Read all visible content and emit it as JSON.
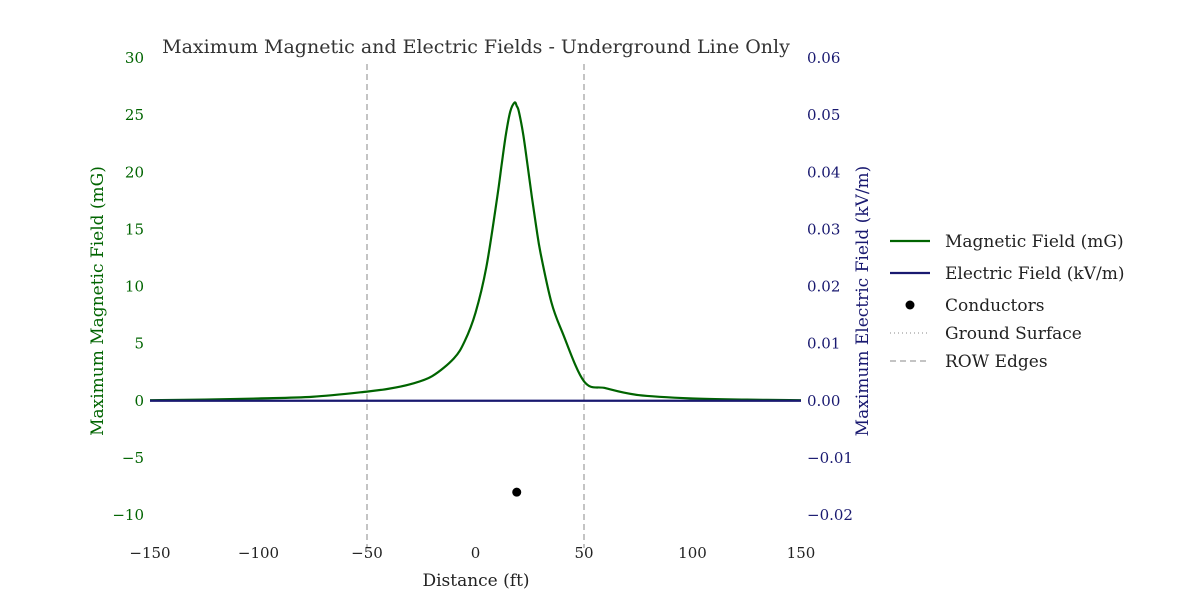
{
  "chart_data": {
    "type": "line",
    "title": "Maximum Magnetic and Electric Fields - Underground Line Only",
    "xlabel": "Distance (ft)",
    "ylabel_left": "Maximum Magnetic Field (mG)",
    "ylabel_right": "Maximum Electric Field (kV/m)",
    "xlim": [
      -150,
      150
    ],
    "ylim_left": [
      -10,
      30
    ],
    "ylim_right": [
      -0.02,
      0.06
    ],
    "x_ticks": [
      "−150",
      "−100",
      "−50",
      "0",
      "50",
      "100",
      "150"
    ],
    "y_left_ticks": [
      "30",
      "25",
      "20",
      "15",
      "10",
      "5",
      "0",
      "−5",
      "−10"
    ],
    "y_right_ticks": [
      "0.06",
      "0.05",
      "0.04",
      "0.03",
      "0.02",
      "0.01",
      "0.00",
      "−0.01",
      "−0.02"
    ],
    "grid": false,
    "legend_position": "right",
    "colors": {
      "magnetic": "#006400",
      "electric": "#191970",
      "conductor": "#000000",
      "reference": "#888888"
    },
    "series": [
      {
        "name": "Magnetic Field (mG)",
        "axis": "left",
        "x": [
          -150,
          -125,
          -100,
          -75,
          -50,
          -40,
          -30,
          -20,
          -10,
          -5,
          0,
          5,
          10,
          12,
          14,
          16,
          18,
          19,
          20,
          22,
          24,
          26,
          28,
          30,
          35,
          40,
          50,
          60,
          75,
          100,
          125,
          150
        ],
        "y": [
          0.05,
          0.1,
          0.2,
          0.35,
          0.8,
          1.05,
          1.45,
          2.15,
          3.7,
          5.2,
          7.7,
          11.7,
          17.8,
          20.6,
          23.3,
          25.3,
          26.1,
          25.8,
          25.3,
          23.3,
          20.6,
          17.8,
          15.2,
          12.9,
          8.6,
          6.0,
          1.7,
          1.1,
          0.5,
          0.2,
          0.1,
          0.05
        ]
      },
      {
        "name": "Electric Field (kV/m)",
        "axis": "right",
        "x": [
          -150,
          150
        ],
        "y": [
          0.0,
          0.0
        ]
      }
    ],
    "conductors": {
      "name": "Conductors",
      "x": [
        19
      ],
      "y": [
        -8
      ]
    },
    "ground_surface": {
      "name": "Ground Surface"
    },
    "row_edges": {
      "name": "ROW Edges",
      "x": [
        -50,
        50
      ]
    },
    "legend": [
      "Magnetic Field (mG)",
      "Electric Field (kV/m)",
      "Conductors",
      "Ground Surface",
      "ROW Edges"
    ]
  }
}
